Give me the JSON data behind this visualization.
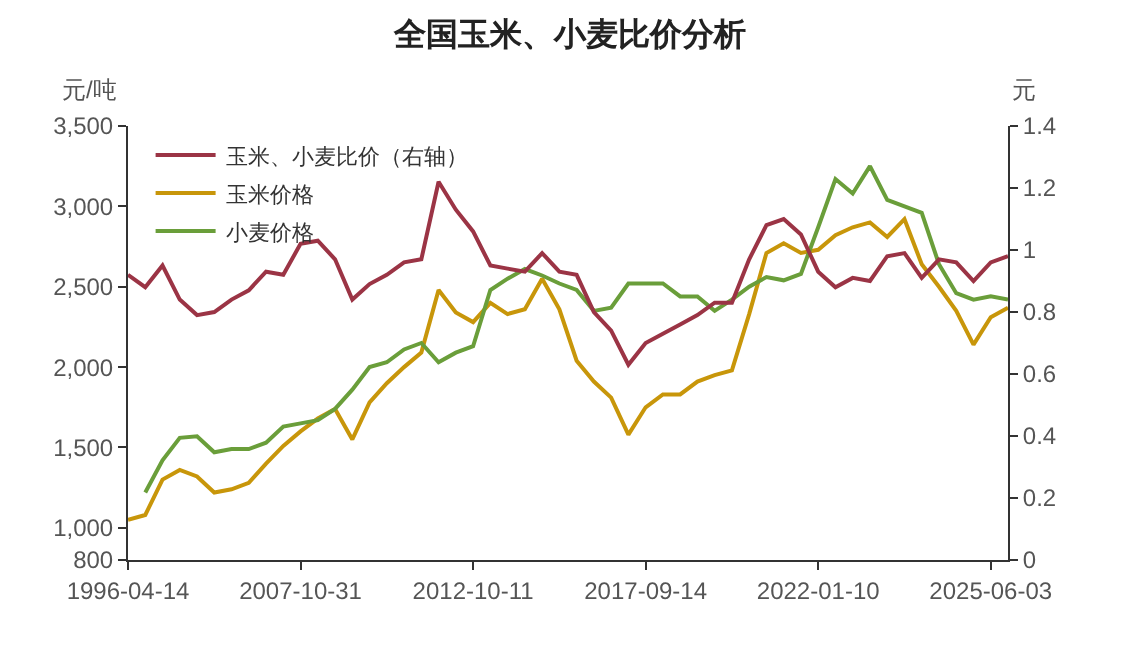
{
  "chart_data": {
    "type": "line",
    "title": "全国玉米、小麦比价分析",
    "ylabel": "元/吨",
    "y2label": "元",
    "categories": [
      "1996-04-14",
      null,
      null,
      null,
      null,
      null,
      null,
      null,
      null,
      null,
      "2007-10-31",
      null,
      null,
      null,
      null,
      null,
      null,
      null,
      null,
      null,
      "2012-10-11",
      null,
      null,
      null,
      null,
      null,
      null,
      null,
      null,
      null,
      "2017-09-14",
      null,
      null,
      null,
      null,
      null,
      null,
      null,
      null,
      null,
      "2022-01-10",
      null,
      null,
      null,
      null,
      null,
      null,
      null,
      null,
      null,
      "2025-06-03",
      null
    ],
    "series": [
      {
        "name": "玉米、小麦比价（右轴）",
        "color": "#9b3445",
        "axis": "y2",
        "values": [
          0.92,
          0.88,
          0.95,
          0.84,
          0.79,
          0.8,
          0.84,
          0.87,
          0.93,
          0.92,
          1.02,
          1.03,
          0.97,
          0.84,
          0.89,
          0.92,
          0.96,
          0.97,
          1.22,
          1.13,
          1.06,
          0.95,
          0.94,
          0.93,
          0.99,
          0.93,
          0.92,
          0.8,
          0.74,
          0.63,
          0.7,
          0.73,
          0.76,
          0.79,
          0.83,
          0.83,
          0.97,
          1.08,
          1.1,
          1.05,
          0.93,
          0.88,
          0.91,
          0.9,
          0.98,
          0.99,
          0.91,
          0.97,
          0.96,
          0.9,
          0.96,
          0.98
        ]
      },
      {
        "name": "玉米价格",
        "color": "#c8960a",
        "values": [
          1050,
          1080,
          1300,
          1360,
          1320,
          1220,
          1240,
          1280,
          1400,
          1510,
          1600,
          1680,
          1740,
          1550,
          1780,
          1900,
          2000,
          2090,
          2480,
          2340,
          2280,
          2400,
          2330,
          2360,
          2550,
          2360,
          2040,
          1910,
          1810,
          1580,
          1750,
          1830,
          1830,
          1910,
          1950,
          1980,
          2330,
          2710,
          2770,
          2710,
          2730,
          2820,
          2870,
          2900,
          2810,
          2920,
          2640,
          2500,
          2350,
          2140,
          2310,
          2370
        ]
      },
      {
        "name": "小麦价格",
        "color": "#6a9e3a",
        "values": [
          null,
          1220,
          1420,
          1560,
          1570,
          1470,
          1490,
          1490,
          1530,
          1630,
          1650,
          1670,
          1740,
          1860,
          2000,
          2030,
          2110,
          2150,
          2030,
          2090,
          2130,
          2480,
          2550,
          2610,
          2570,
          2520,
          2480,
          2350,
          2370,
          2520,
          2520,
          2520,
          2440,
          2440,
          2350,
          2420,
          2500,
          2560,
          2540,
          2580,
          2870,
          3170,
          3080,
          3250,
          3040,
          3000,
          2960,
          2640,
          2460,
          2420,
          2440,
          2420
        ]
      }
    ],
    "ylim": [
      800,
      3500
    ],
    "yticks": [
      800,
      {
        "value": 1000,
        "label": "1,000"
      },
      {
        "value": 1500,
        "label": "1,500"
      },
      {
        "value": 2000,
        "label": "2,000"
      },
      {
        "value": 2500,
        "label": "2,500"
      },
      {
        "value": 3000,
        "label": "3,000"
      },
      {
        "value": 3500,
        "label": "3,500"
      }
    ],
    "y2lim": [
      0,
      1.4
    ],
    "y2ticks": [
      0,
      0.2,
      0.4,
      0.6,
      0.8,
      1,
      1.2,
      1.4
    ],
    "grid": false,
    "legend": "top left",
    "marker": "none",
    "line_style": "solid"
  }
}
